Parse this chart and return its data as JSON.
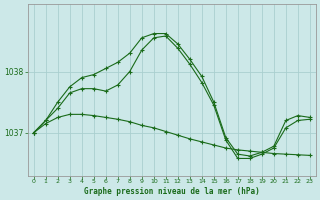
{
  "title": "Graphe pression niveau de la mer (hPa)",
  "background_color": "#cce8e8",
  "grid_color": "#aacfcf",
  "line_color": "#1a6b1a",
  "xlim": [
    -0.5,
    23.5
  ],
  "ylim": [
    1036.3,
    1039.1
  ],
  "yticks": [
    1037,
    1038
  ],
  "xticks": [
    0,
    1,
    2,
    3,
    4,
    5,
    6,
    7,
    8,
    9,
    10,
    11,
    12,
    13,
    14,
    15,
    16,
    17,
    18,
    19,
    20,
    21,
    22,
    23
  ],
  "series1": {
    "x": [
      0,
      1,
      2,
      3,
      4,
      5,
      6,
      7,
      8,
      9,
      10,
      11,
      12,
      13,
      14,
      15,
      16,
      17,
      18,
      19,
      20,
      21,
      22,
      23
    ],
    "y": [
      1037.0,
      1037.15,
      1037.25,
      1037.3,
      1037.3,
      1037.28,
      1037.25,
      1037.22,
      1037.18,
      1037.12,
      1037.08,
      1037.02,
      1036.96,
      1036.9,
      1036.85,
      1036.8,
      1036.75,
      1036.72,
      1036.7,
      1036.68,
      1036.66,
      1036.65,
      1036.64,
      1036.63
    ]
  },
  "series2": {
    "x": [
      0,
      1,
      2,
      3,
      4,
      5,
      6,
      7,
      8,
      9,
      10,
      11,
      12,
      13,
      14,
      15,
      16,
      17,
      18,
      19,
      20,
      21,
      22,
      23
    ],
    "y": [
      1037.0,
      1037.2,
      1037.5,
      1037.75,
      1037.9,
      1037.95,
      1038.05,
      1038.15,
      1038.3,
      1038.55,
      1038.62,
      1038.62,
      1038.45,
      1038.2,
      1037.92,
      1037.5,
      1036.92,
      1036.65,
      1036.62,
      1036.68,
      1036.78,
      1037.2,
      1037.28,
      1037.25
    ]
  },
  "series3": {
    "x": [
      0,
      1,
      2,
      3,
      4,
      5,
      6,
      7,
      8,
      9,
      10,
      11,
      12,
      13,
      14,
      15,
      16,
      17,
      18,
      19,
      20,
      21,
      22,
      23
    ],
    "y": [
      1037.0,
      1037.2,
      1037.4,
      1037.65,
      1037.72,
      1037.72,
      1037.68,
      1037.78,
      1038.0,
      1038.35,
      1038.55,
      1038.58,
      1038.38,
      1038.12,
      1037.82,
      1037.45,
      1036.88,
      1036.58,
      1036.58,
      1036.65,
      1036.75,
      1037.08,
      1037.2,
      1037.22
    ]
  }
}
